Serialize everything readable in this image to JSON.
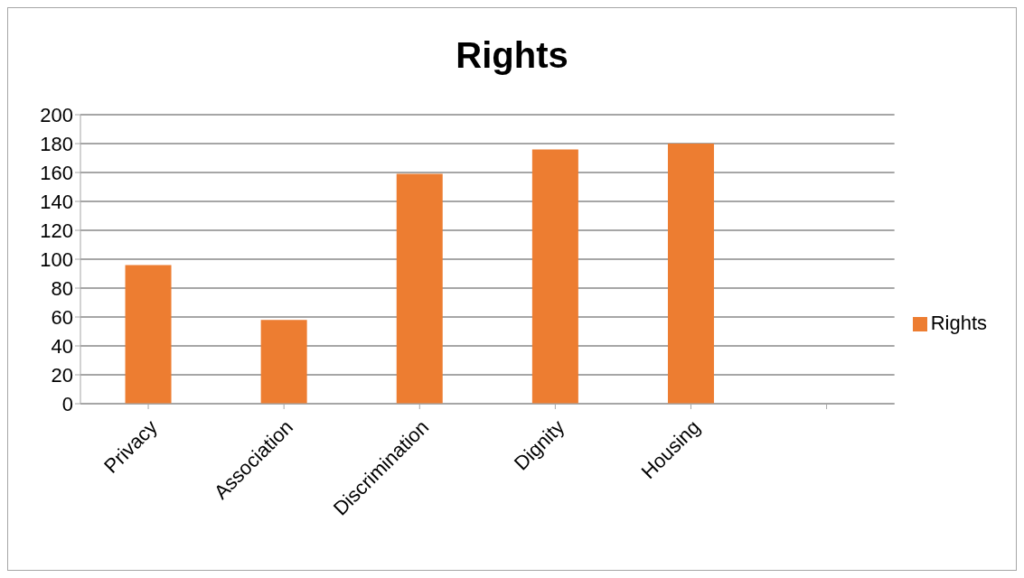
{
  "chart_data": {
    "type": "bar",
    "title": "Rights",
    "categories": [
      "Privacy",
      "Association",
      "Discrimination",
      "Dignity",
      "Housing",
      null
    ],
    "series": [
      {
        "name": "Rights",
        "color": "#ed7d31",
        "values": [
          96,
          58,
          159,
          176,
          180,
          null
        ]
      }
    ],
    "ylim": [
      0,
      200
    ],
    "yticks": [
      0,
      20,
      40,
      60,
      80,
      100,
      120,
      140,
      160,
      180,
      200
    ],
    "grid": "y",
    "legend": "right"
  }
}
